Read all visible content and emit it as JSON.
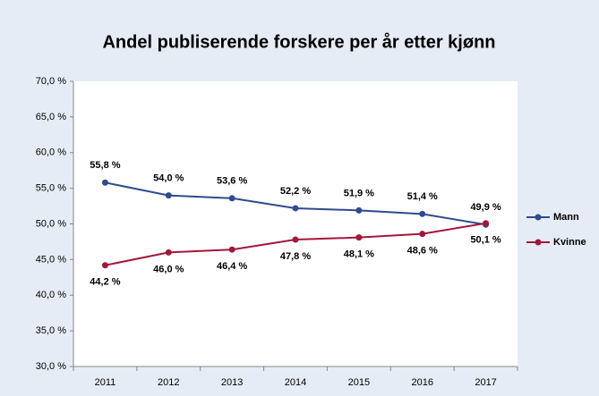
{
  "chart_data": {
    "type": "line",
    "title": "Andel publiserende forskere per år etter kjønn",
    "categories": [
      "2011",
      "2012",
      "2013",
      "2014",
      "2015",
      "2016",
      "2017"
    ],
    "series": [
      {
        "name": "Mann",
        "color": "#2f4b8e",
        "values": [
          55.8,
          54.0,
          53.6,
          52.2,
          51.9,
          51.4,
          49.9
        ],
        "value_labels": [
          "55,8 %",
          "54,0 %",
          "53,6 %",
          "52,2 %",
          "51,9 %",
          "51,4 %",
          "49,9 %"
        ]
      },
      {
        "name": "Kvinne",
        "color": "#a3173a",
        "values": [
          44.2,
          46.0,
          46.4,
          47.8,
          48.1,
          48.6,
          50.1
        ],
        "value_labels": [
          "44,2 %",
          "46,0 %",
          "46,4 %",
          "47,8 %",
          "48,1 %",
          "48,6 %",
          "50,1 %"
        ]
      }
    ],
    "ylim": [
      30,
      70
    ],
    "yticks": [
      {
        "value": 30,
        "label": "30,0 %"
      },
      {
        "value": 35,
        "label": "35,0 %"
      },
      {
        "value": 40,
        "label": "40,0 %"
      },
      {
        "value": 45,
        "label": "45,0 %"
      },
      {
        "value": 50,
        "label": "50,0 %"
      },
      {
        "value": 55,
        "label": "55,0 %"
      },
      {
        "value": 60,
        "label": "60,0 %"
      },
      {
        "value": 65,
        "label": "65,0 %"
      },
      {
        "value": 70,
        "label": "70,0 %"
      }
    ],
    "legend": "right"
  }
}
